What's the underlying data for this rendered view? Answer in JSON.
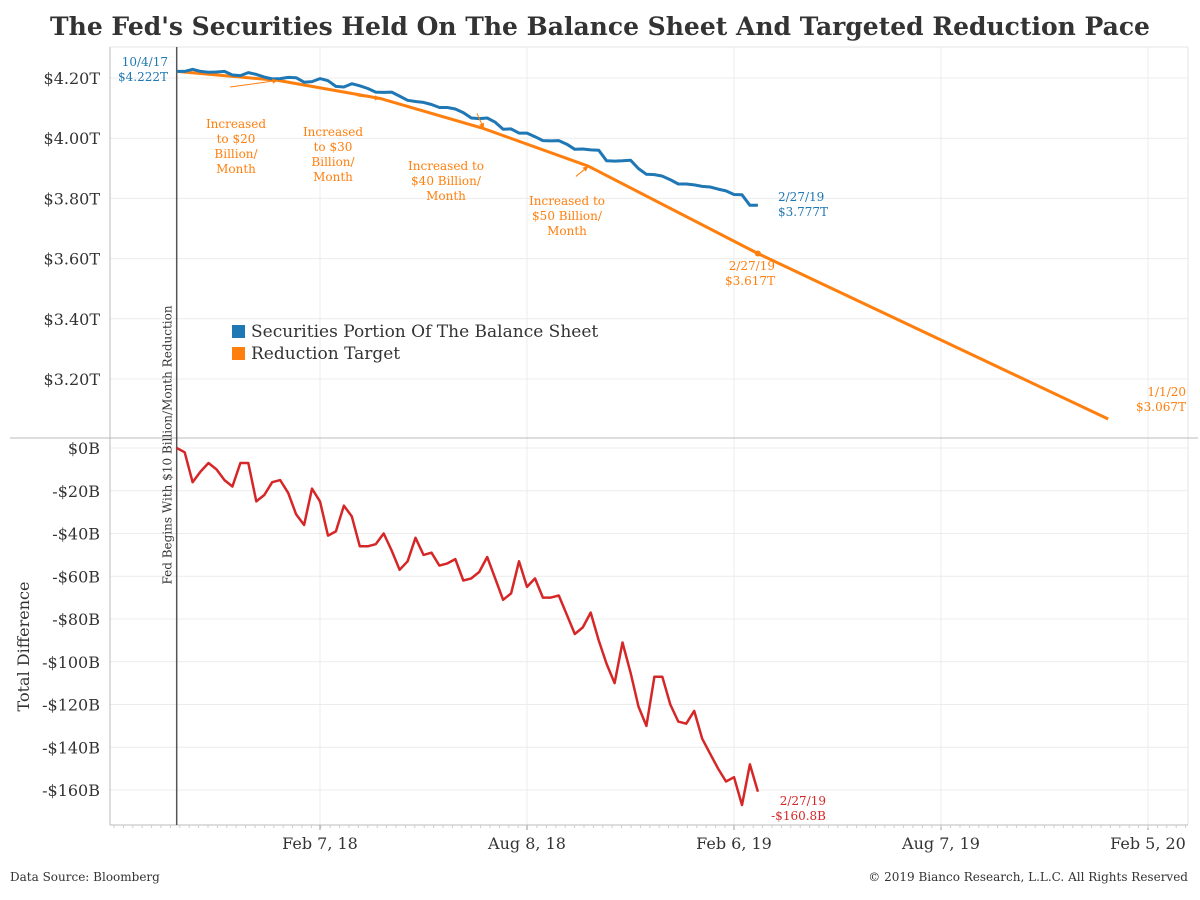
{
  "title": "The Fed's Securities Held On The Balance Sheet And Targeted Reduction Pace",
  "footer": {
    "source": "Data Source: Bloomberg",
    "copyright": "© 2019 Bianco Research, L.L.C. All Rights Reserved"
  },
  "colors": {
    "securities": "#1f77b4",
    "target": "#ff7f0e",
    "difference": "#d62728",
    "start_line": "#555555"
  },
  "chart_data": [
    {
      "type": "line",
      "ylim": [
        3.0,
        4.3
      ],
      "y_ticks": [
        "$4.20T",
        "$4.00T",
        "$3.80T",
        "$3.60T",
        "$3.40T",
        "$3.20T"
      ],
      "y_tick_values": [
        4.2,
        4.0,
        3.8,
        3.6,
        3.4,
        3.2
      ],
      "legend_placement": "center-left",
      "series": [
        {
          "name": "Securities Portion Of The Balance Sheet",
          "x": [
            "2017-10-04",
            "2017-10-11",
            "2017-10-18",
            "2017-10-25",
            "2017-11-01",
            "2017-11-08",
            "2017-11-15",
            "2017-11-22",
            "2017-11-29",
            "2017-12-06",
            "2017-12-13",
            "2017-12-20",
            "2017-12-27",
            "2018-01-03",
            "2018-01-10",
            "2018-01-17",
            "2018-01-24",
            "2018-01-31",
            "2018-02-07",
            "2018-02-14",
            "2018-02-21",
            "2018-02-28",
            "2018-03-07",
            "2018-03-14",
            "2018-03-21",
            "2018-03-28",
            "2018-04-04",
            "2018-04-11",
            "2018-04-18",
            "2018-04-25",
            "2018-05-02",
            "2018-05-09",
            "2018-05-16",
            "2018-05-23",
            "2018-05-30",
            "2018-06-06",
            "2018-06-13",
            "2018-06-20",
            "2018-06-27",
            "2018-07-04",
            "2018-07-11",
            "2018-07-18",
            "2018-07-25",
            "2018-08-01",
            "2018-08-08",
            "2018-08-15",
            "2018-08-22",
            "2018-08-29",
            "2018-09-05",
            "2018-09-12",
            "2018-09-19",
            "2018-09-26",
            "2018-10-03",
            "2018-10-10",
            "2018-10-17",
            "2018-10-24",
            "2018-10-31",
            "2018-11-07",
            "2018-11-14",
            "2018-11-21",
            "2018-11-28",
            "2018-12-05",
            "2018-12-12",
            "2018-12-19",
            "2018-12-26",
            "2019-01-02",
            "2019-01-09",
            "2019-01-16",
            "2019-01-23",
            "2019-01-30",
            "2019-02-06",
            "2019-02-13",
            "2019-02-20",
            "2019-02-27"
          ],
          "values": [
            4.222,
            4.222,
            4.229,
            4.222,
            4.219,
            4.22,
            4.222,
            4.21,
            4.208,
            4.218,
            4.212,
            4.203,
            4.197,
            4.198,
            4.202,
            4.201,
            4.186,
            4.188,
            4.198,
            4.191,
            4.172,
            4.17,
            4.181,
            4.174,
            4.165,
            4.153,
            4.152,
            4.153,
            4.14,
            4.126,
            4.122,
            4.119,
            4.112,
            4.102,
            4.102,
            4.097,
            4.085,
            4.067,
            4.065,
            4.067,
            4.053,
            4.03,
            4.031,
            4.017,
            4.017,
            4.005,
            3.992,
            3.991,
            3.992,
            3.98,
            3.963,
            3.964,
            3.961,
            3.96,
            3.925,
            3.924,
            3.925,
            3.927,
            3.899,
            3.88,
            3.879,
            3.874,
            3.862,
            3.848,
            3.848,
            3.845,
            3.84,
            3.838,
            3.831,
            3.825,
            3.813,
            3.812,
            3.777,
            3.777
          ]
        },
        {
          "name": "Reduction Target",
          "x": [
            "2017-10-04",
            "2018-01-01",
            "2018-04-01",
            "2018-07-01",
            "2018-10-01",
            "2019-02-27",
            "2020-01-01"
          ],
          "values": [
            4.222,
            4.192,
            4.132,
            4.032,
            3.907,
            3.617,
            3.067
          ]
        }
      ],
      "annotations": [
        {
          "lines": [
            "10/4/17",
            "$4.222T"
          ],
          "color": "#1f77b4"
        },
        {
          "lines": [
            "2/27/19",
            "$3.777T"
          ],
          "color": "#1f77b4"
        },
        {
          "lines": [
            "2/27/19",
            "$3.617T"
          ],
          "color": "#ff7f0e"
        },
        {
          "lines": [
            "1/1/20",
            "$3.067T"
          ],
          "color": "#ff7f0e"
        },
        {
          "lines": [
            "Increased",
            "to $20",
            "Billion/",
            "Month"
          ],
          "color": "#ff7f0e"
        },
        {
          "lines": [
            "Increased",
            "to $30",
            "Billion/",
            "Month"
          ],
          "color": "#ff7f0e"
        },
        {
          "lines": [
            "Increased to",
            "$40 Billion/",
            "Month"
          ],
          "color": "#ff7f0e"
        },
        {
          "lines": [
            "Increased to",
            "$50 Billion/",
            "Month"
          ],
          "color": "#ff7f0e"
        }
      ],
      "vertical_marker": {
        "date": "2017-10-04",
        "label": "Fed Begins With $10 Billion/Month Reduction"
      }
    },
    {
      "type": "line",
      "ylabel": "Total Difference",
      "ylim": [
        -175,
        3
      ],
      "y_ticks": [
        "$0B",
        "-$20B",
        "-$40B",
        "-$60B",
        "-$80B",
        "-$100B",
        "-$120B",
        "-$140B",
        "-$160B"
      ],
      "y_tick_values": [
        0,
        -20,
        -40,
        -60,
        -80,
        -100,
        -120,
        -140,
        -160
      ],
      "series": [
        {
          "name": "Total Difference",
          "x": [
            "2017-10-04",
            "2017-10-11",
            "2017-10-18",
            "2017-10-25",
            "2017-11-01",
            "2017-11-08",
            "2017-11-15",
            "2017-11-22",
            "2017-11-29",
            "2017-12-06",
            "2017-12-13",
            "2017-12-20",
            "2017-12-27",
            "2018-01-03",
            "2018-01-10",
            "2018-01-17",
            "2018-01-24",
            "2018-01-31",
            "2018-02-07",
            "2018-02-14",
            "2018-02-21",
            "2018-02-28",
            "2018-03-07",
            "2018-03-14",
            "2018-03-21",
            "2018-03-28",
            "2018-04-04",
            "2018-04-11",
            "2018-04-18",
            "2018-04-25",
            "2018-05-02",
            "2018-05-09",
            "2018-05-16",
            "2018-05-23",
            "2018-05-30",
            "2018-06-06",
            "2018-06-13",
            "2018-06-20",
            "2018-06-27",
            "2018-07-04",
            "2018-07-11",
            "2018-07-18",
            "2018-07-25",
            "2018-08-01",
            "2018-08-08",
            "2018-08-15",
            "2018-08-22",
            "2018-08-29",
            "2018-09-05",
            "2018-09-12",
            "2018-09-19",
            "2018-09-26",
            "2018-10-03",
            "2018-10-10",
            "2018-10-17",
            "2018-10-24",
            "2018-10-31",
            "2018-11-07",
            "2018-11-14",
            "2018-11-21",
            "2018-11-28",
            "2018-12-05",
            "2018-12-12",
            "2018-12-19",
            "2018-12-26",
            "2019-01-02",
            "2019-01-09",
            "2019-01-16",
            "2019-01-23",
            "2019-01-30",
            "2019-02-06",
            "2019-02-13",
            "2019-02-20",
            "2019-02-27"
          ],
          "values": [
            0,
            -2,
            -16,
            -11,
            -7,
            -10,
            -15,
            -18,
            -7,
            -7,
            -25,
            -22,
            -16,
            -15,
            -21,
            -31,
            -36,
            -19,
            -25,
            -41,
            -39,
            -27,
            -32,
            -46,
            -46,
            -45,
            -40,
            -48,
            -57,
            -53,
            -42,
            -50,
            -49,
            -55,
            -54,
            -52,
            -62,
            -61,
            -58,
            -51,
            -61,
            -71,
            -68,
            -53,
            -65,
            -61,
            -70,
            -70,
            -69,
            -78,
            -87,
            -84,
            -77,
            -90,
            -101,
            -110,
            -91,
            -105,
            -121,
            -130,
            -107,
            -107,
            -120,
            -128,
            -129,
            -123,
            -136,
            -143,
            -150,
            -156,
            -154,
            -167,
            -148,
            -160.8
          ]
        }
      ],
      "annotations": [
        {
          "lines": [
            "2/27/19",
            "-$160.8B"
          ],
          "color": "#d62728"
        }
      ]
    }
  ],
  "x_axis": {
    "ticks": [
      "Feb 7, 18",
      "Aug 8, 18",
      "Feb 6, 19",
      "Aug 7, 19",
      "Feb 5, 20"
    ],
    "tick_dates": [
      "2018-02-07",
      "2018-08-08",
      "2019-02-06",
      "2019-08-07",
      "2020-02-05"
    ]
  }
}
